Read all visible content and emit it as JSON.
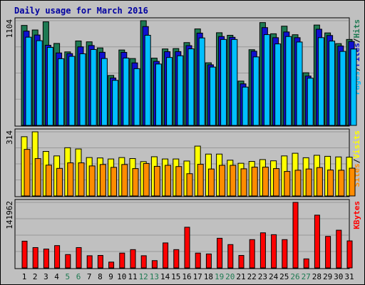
{
  "chart_data": {
    "title": "Daily usage for March 2016",
    "days": [
      "1",
      "2",
      "3",
      "4",
      "5",
      "6",
      "7",
      "8",
      "9",
      "10",
      "11",
      "12",
      "13",
      "14",
      "15",
      "16",
      "17",
      "18",
      "19",
      "20",
      "21",
      "22",
      "23",
      "24",
      "25",
      "26",
      "27",
      "28",
      "29",
      "30",
      "31"
    ],
    "weekend_days": [
      "5",
      "6",
      "12",
      "13",
      "19",
      "20",
      "26",
      "27"
    ],
    "panels": [
      {
        "type": "bar",
        "id": "hits-pages-files",
        "max_label": "1104",
        "ylim": [
          0,
          1104
        ],
        "legend": [
          "Pages",
          "/",
          "Files",
          "/",
          "Hits"
        ],
        "series": [
          {
            "name": "Hits",
            "color": "#1e7a52",
            "values": [
              1054,
              1006,
              1092,
              864,
              775,
              890,
              881,
              817,
              527,
              795,
              705,
              1104,
              709,
              806,
              810,
              873,
              1017,
              660,
              977,
              950,
              467,
              798,
              1084,
              966,
              1046,
              956,
              555,
              1058,
              975,
              862,
              906
            ]
          },
          {
            "name": "Files",
            "color": "#1010d0",
            "values": [
              994,
              953,
              845,
              764,
              757,
              828,
              842,
              771,
              500,
              770,
              659,
              1042,
              675,
              777,
              778,
              841,
              973,
              639,
              937,
              929,
              438,
              782,
              1031,
              925,
              985,
              925,
              520,
              1014,
              948,
              837,
              885
            ]
          },
          {
            "name": "Pages",
            "color": "#00bfff",
            "values": [
              930,
              893,
              822,
              703,
              728,
              755,
              800,
              705,
              475,
              710,
              598,
              950,
              647,
              716,
              734,
              807,
              922,
              615,
              906,
              906,
              404,
              722,
              957,
              859,
              937,
              879,
              498,
              925,
              889,
              780,
              805
            ]
          }
        ]
      },
      {
        "type": "bar",
        "id": "visits-sites",
        "max_label": "314",
        "ylim": [
          0,
          314
        ],
        "legend": [
          "Sites",
          "/",
          "Visits"
        ],
        "series": [
          {
            "name": "Visits",
            "color": "#ffff00",
            "values": [
              290,
              314,
              218,
              196,
              236,
              230,
              188,
              186,
              181,
              188,
              183,
              168,
              192,
              181,
              181,
              171,
              244,
              205,
              205,
              175,
              160,
              169,
              178,
              172,
              196,
              209,
              187,
              199,
              194,
              191,
              190
            ]
          },
          {
            "name": "Sites",
            "color": "#ff8c00",
            "values": [
              228,
              183,
              151,
              135,
              162,
              162,
              147,
              154,
              140,
              154,
              134,
              159,
              145,
              150,
              144,
              109,
              155,
              132,
              150,
              150,
              133,
              141,
              141,
              134,
              120,
              126,
              132,
              139,
              127,
              126,
              136
            ]
          }
        ]
      },
      {
        "type": "bar",
        "id": "kbytes",
        "max_label": "141962",
        "ylim": [
          0,
          141962
        ],
        "legend": [
          "KBytes"
        ],
        "series": [
          {
            "name": "KBytes",
            "color": "#ff0000",
            "values": [
              57904,
              44036,
              40891,
              48325,
              28957,
              44036,
              26383,
              27016,
              12608,
              32125,
              39614,
              26383,
              15773,
              54125,
              39614,
              88100,
              32125,
              30183,
              64200,
              50525,
              27016,
              61291,
              76041,
              71975,
              61291,
              141962,
              19542,
              114263,
              68300,
              81650,
              58535
            ]
          }
        ]
      }
    ]
  }
}
